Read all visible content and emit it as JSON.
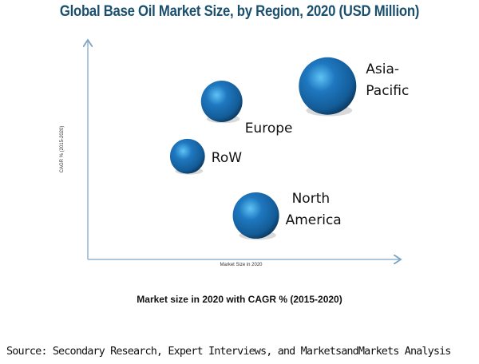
{
  "chart_data": {
    "type": "scatter",
    "title": "Global Base Oil Market Size, by Region, 2020 (USD Million)",
    "xlabel": "Market Size in 2020",
    "ylabel": "CAGR % (2015-2020)",
    "subtitle": "Market size in 2020 with CAGR % (2015-2020)",
    "xlim": [
      0,
      100
    ],
    "ylim": [
      0,
      100
    ],
    "grid": false,
    "bubble_color": "#1f6fb0",
    "points": [
      {
        "label": [
          "Asia-",
          "Pacific"
        ],
        "x": 77,
        "y": 79,
        "size": 100
      },
      {
        "label": [
          "Europe"
        ],
        "x": 43,
        "y": 72,
        "size": 52
      },
      {
        "label": [
          "RoW"
        ],
        "x": 32,
        "y": 47,
        "size": 37
      },
      {
        "label": [
          "North",
          "America"
        ],
        "x": 54,
        "y": 20,
        "size": 65
      }
    ]
  },
  "source": "Source: Secondary Research, Expert Interviews, and MarketsandMarkets Analysis"
}
